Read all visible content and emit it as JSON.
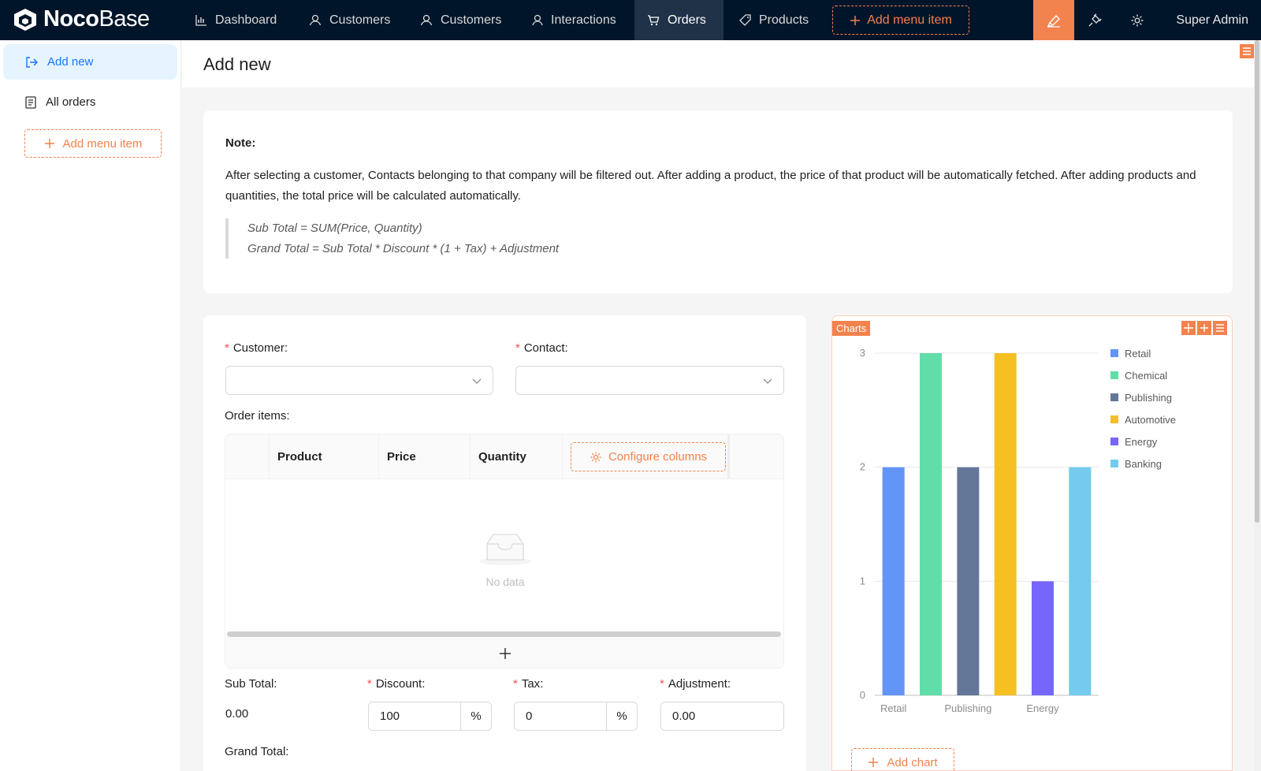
{
  "app": {
    "logo_bold": "Noco",
    "logo_thin": "Base"
  },
  "topnav": {
    "items": [
      {
        "label": "Dashboard",
        "icon": "bar-chart-icon"
      },
      {
        "label": "Customers",
        "icon": "user-icon"
      },
      {
        "label": "Customers",
        "icon": "user-icon"
      },
      {
        "label": "Interactions",
        "icon": "user-icon"
      },
      {
        "label": "Orders",
        "icon": "cart-icon",
        "active": true
      },
      {
        "label": "Products",
        "icon": "tag-icon"
      }
    ],
    "add_menu_item": "Add menu item",
    "user": "Super Admin"
  },
  "sidebar": {
    "items": [
      {
        "label": "Add new",
        "active": true
      },
      {
        "label": "All orders"
      }
    ],
    "add_menu_item": "Add menu item"
  },
  "page": {
    "title": "Add new"
  },
  "note": {
    "title": "Note:",
    "body": "After selecting a customer, Contacts belonging to that company will be filtered out. After adding a product, the price of that product will be automatically fetched. After adding products and quantities, the total price will be calculated automatically.",
    "formula1": "Sub Total = SUM(Price, Quantity)",
    "formula2": "Grand Total = Sub Total * Discount * (1 + Tax) + Adjustment"
  },
  "form": {
    "customer_label": "Customer",
    "contact_label": "Contact",
    "order_items_label": "Order items",
    "table": {
      "columns": [
        "Product",
        "Price",
        "Quantity"
      ],
      "configure_columns": "Configure columns",
      "empty_text": "No data"
    },
    "subtotal_label": "Sub Total",
    "subtotal_value": "0.00",
    "discount_label": "Discount",
    "discount_value": "100",
    "discount_unit": "%",
    "tax_label": "Tax",
    "tax_value": "0",
    "tax_unit": "%",
    "adjustment_label": "Adjustment",
    "adjustment_value": "0.00",
    "grandtotal_label": "Grand Total"
  },
  "charts_block": {
    "tag": "Charts",
    "add_chart": "Add chart"
  },
  "chart_data": {
    "type": "bar",
    "categories": [
      "Retail",
      "Chemical",
      "Publishing",
      "Automotive",
      "Energy",
      "Banking"
    ],
    "x_tick_labels": [
      "Retail",
      "Publishing",
      "Energy"
    ],
    "values": [
      2,
      3,
      2,
      3,
      1,
      2
    ],
    "colors": [
      "#6394f8",
      "#61ddaa",
      "#657798",
      "#f6c022",
      "#7666f9",
      "#74cbed"
    ],
    "ylim": [
      0,
      3
    ],
    "yticks": [
      0,
      1,
      2,
      3
    ],
    "grid": true,
    "legend_position": "right"
  }
}
